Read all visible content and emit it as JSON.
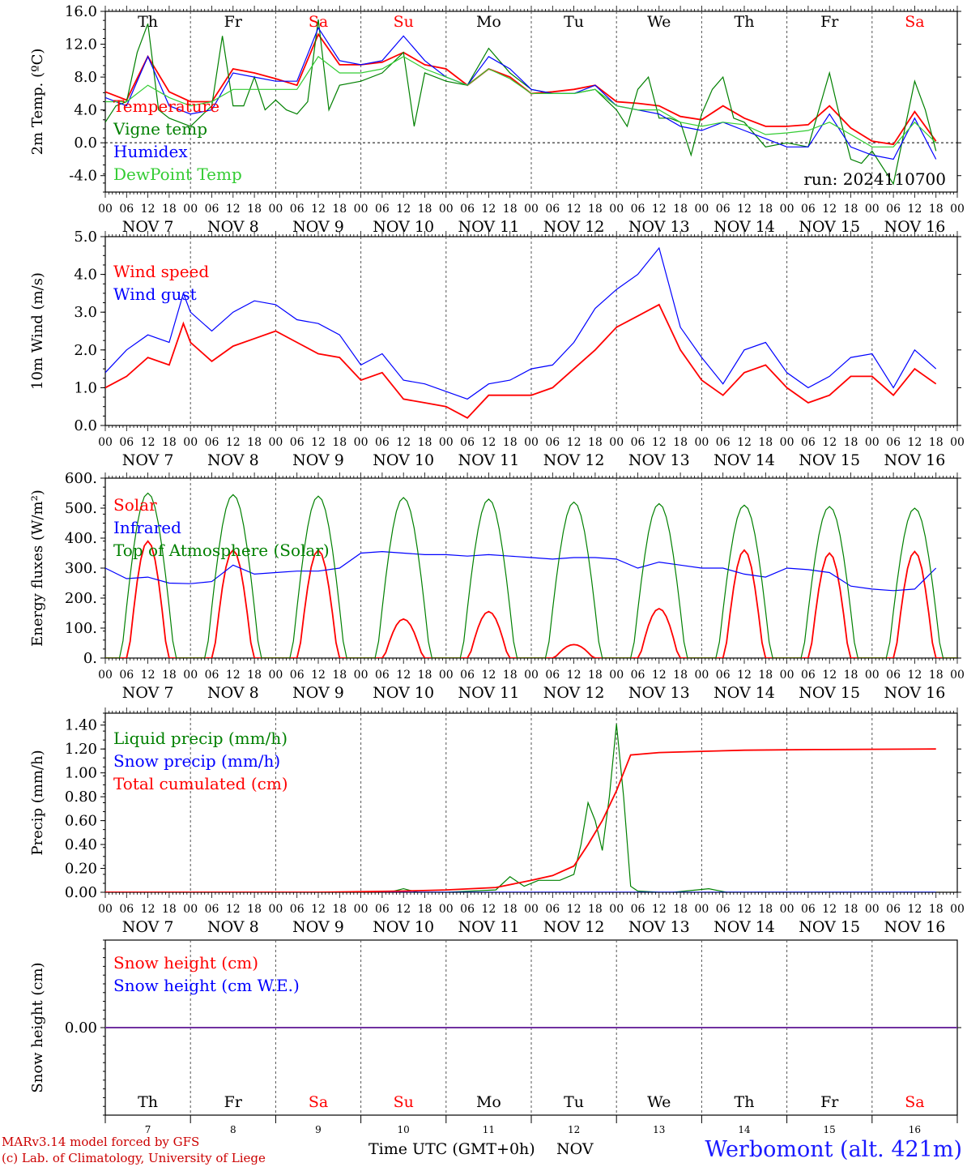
{
  "colors": {
    "red": "#ff0000",
    "green": "#008000",
    "blue": "#0000ff",
    "lightgreen": "#33cc33",
    "purple": "#7030a0",
    "sat": "#ff0000",
    "weekday": "#000000"
  },
  "run_label": "run: 2024110700",
  "station_label": "Werbomont (alt. 421m)",
  "footer": {
    "credit_line1": "MARv3.14 model forced by GFS",
    "credit_line2": "(c) Lab. of Climatology, University of Liege",
    "axis_title": "Time UTC (GMT+0h)",
    "month": "NOV"
  },
  "hour_ticks": [
    "00",
    "06",
    "12",
    "18"
  ],
  "day_labels": [
    "NOV  7",
    "NOV  8",
    "NOV  9",
    "NOV 10",
    "NOV 11",
    "NOV 12",
    "NOV 13",
    "NOV 14",
    "NOV 15",
    "NOV 16"
  ],
  "weekdays": [
    "Th",
    "Fr",
    "Sa",
    "Su",
    "Mo",
    "Tu",
    "We",
    "Th",
    "Fr",
    "Sa"
  ],
  "day_numbers": [
    "7",
    "8",
    "9",
    "10",
    "11",
    "12",
    "13",
    "14",
    "15",
    "16"
  ],
  "chart_data": [
    {
      "type": "line",
      "ylabel": "2m Temp. (ºC)",
      "ylim": [
        -6,
        16
      ],
      "yticks": [
        "16.0",
        "12.0",
        "8.0",
        "4.0",
        "0.0",
        "-4.0"
      ],
      "x_unit": "hours since NOV 7 00 UTC",
      "series": [
        {
          "name": "Temperature",
          "color": "red",
          "x": [
            0,
            6,
            12,
            18,
            24,
            30,
            36,
            42,
            48,
            54,
            60,
            66,
            72,
            78,
            84,
            90,
            96,
            102,
            108,
            114,
            120,
            126,
            132,
            138,
            144,
            150,
            156,
            162,
            168,
            174,
            180,
            186,
            192,
            198,
            204,
            210,
            216,
            222,
            228,
            234
          ],
          "y": [
            6.2,
            5.2,
            10.5,
            6.2,
            5.0,
            5.0,
            9.0,
            8.5,
            7.8,
            7.0,
            13.2,
            9.5,
            9.5,
            9.8,
            11.0,
            9.5,
            9.0,
            7.0,
            9.0,
            8.0,
            6.0,
            6.2,
            6.5,
            7.0,
            5.0,
            4.8,
            4.5,
            3.2,
            2.8,
            4.5,
            3.0,
            2.0,
            2.0,
            2.2,
            4.5,
            1.8,
            0.2,
            -0.2,
            3.8,
            0.2
          ]
        },
        {
          "name": "Vigne temp",
          "color": "green",
          "x": [
            0,
            3,
            6,
            9,
            12,
            15,
            18,
            24,
            30,
            33,
            36,
            39,
            42,
            45,
            48,
            51,
            54,
            57,
            60,
            63,
            66,
            72,
            78,
            84,
            87,
            90,
            96,
            102,
            108,
            111,
            114,
            120,
            126,
            132,
            138,
            144,
            147,
            150,
            153,
            156,
            159,
            162,
            165,
            168,
            171,
            174,
            177,
            180,
            186,
            192,
            198,
            204,
            207,
            210,
            213,
            216,
            222,
            228,
            231,
            234
          ],
          "y": [
            2.5,
            4.5,
            5.0,
            11.0,
            14.5,
            4.0,
            3.0,
            2.0,
            4.5,
            13.0,
            4.5,
            4.5,
            8.0,
            4.0,
            5.2,
            4.0,
            3.5,
            5.0,
            15.0,
            4.0,
            7.0,
            7.5,
            8.5,
            11.0,
            2.0,
            8.5,
            7.5,
            7.0,
            11.5,
            10.0,
            8.5,
            6.5,
            6.0,
            6.0,
            6.5,
            4.0,
            2.0,
            6.5,
            8.0,
            3.0,
            3.0,
            2.5,
            -1.5,
            3.5,
            6.5,
            8.0,
            3.0,
            2.5,
            -0.5,
            0.0,
            -0.5,
            8.5,
            3.0,
            -2.0,
            -2.5,
            -1.0,
            -5.0,
            7.5,
            4.0,
            -1.0
          ]
        },
        {
          "name": "Humidex",
          "color": "blue",
          "x": [
            0,
            6,
            12,
            18,
            24,
            30,
            36,
            42,
            48,
            54,
            60,
            66,
            72,
            78,
            84,
            90,
            96,
            102,
            108,
            114,
            120,
            126,
            132,
            138,
            144,
            150,
            156,
            162,
            168,
            174,
            180,
            186,
            192,
            198,
            204,
            210,
            216,
            222,
            228,
            234
          ],
          "y": [
            5.5,
            4.5,
            10.5,
            4.5,
            3.5,
            4.0,
            8.5,
            8.0,
            7.5,
            7.5,
            14.0,
            10.0,
            9.5,
            10.0,
            13.0,
            10.0,
            8.0,
            7.0,
            10.5,
            9.0,
            6.5,
            6.0,
            6.0,
            7.0,
            4.5,
            4.0,
            3.5,
            2.0,
            1.5,
            2.5,
            1.5,
            0.5,
            -0.5,
            -0.5,
            3.5,
            -0.5,
            -1.5,
            -2.0,
            3.0,
            -2.0
          ]
        },
        {
          "name": "DewPoint Temp",
          "color": "lightgreen",
          "x": [
            0,
            6,
            12,
            18,
            24,
            30,
            36,
            42,
            48,
            54,
            60,
            66,
            72,
            78,
            84,
            90,
            96,
            102,
            108,
            114,
            120,
            126,
            132,
            138,
            144,
            150,
            156,
            162,
            168,
            174,
            180,
            186,
            192,
            198,
            204,
            210,
            216,
            222,
            228,
            234
          ],
          "y": [
            5.0,
            5.0,
            7.0,
            5.5,
            4.5,
            5.0,
            6.5,
            6.5,
            6.5,
            6.5,
            10.5,
            8.5,
            8.5,
            9.0,
            10.5,
            9.0,
            8.0,
            7.0,
            9.0,
            7.8,
            6.0,
            6.0,
            6.0,
            6.5,
            4.5,
            4.0,
            4.0,
            2.5,
            2.0,
            2.5,
            2.2,
            1.0,
            1.2,
            1.5,
            2.5,
            1.0,
            -0.5,
            -0.5,
            2.5,
            0.0
          ]
        }
      ]
    },
    {
      "type": "line",
      "ylabel": "10m Wind (m/s)",
      "ylim": [
        0,
        5
      ],
      "yticks": [
        "5.0",
        "4.0",
        "3.0",
        "2.0",
        "1.0",
        "0.0"
      ],
      "x_unit": "hours since NOV 7 00 UTC",
      "series": [
        {
          "name": "Wind speed",
          "color": "red",
          "x": [
            0,
            6,
            12,
            18,
            22,
            24,
            30,
            36,
            42,
            48,
            54,
            60,
            66,
            72,
            78,
            84,
            90,
            96,
            102,
            108,
            114,
            120,
            126,
            132,
            138,
            144,
            150,
            156,
            162,
            168,
            174,
            180,
            186,
            192,
            198,
            204,
            210,
            216,
            222,
            228,
            234
          ],
          "y": [
            1.0,
            1.3,
            1.8,
            1.6,
            2.7,
            2.2,
            1.7,
            2.1,
            2.3,
            2.5,
            2.2,
            1.9,
            1.8,
            1.2,
            1.4,
            0.7,
            0.6,
            0.5,
            0.2,
            0.8,
            0.8,
            0.8,
            1.0,
            1.5,
            2.0,
            2.6,
            2.9,
            3.2,
            2.0,
            1.2,
            0.8,
            1.4,
            1.6,
            1.0,
            0.6,
            0.8,
            1.3,
            1.3,
            0.8,
            1.5,
            1.1
          ]
        },
        {
          "name": "Wind gust",
          "color": "blue",
          "x": [
            0,
            6,
            12,
            18,
            22,
            24,
            30,
            36,
            42,
            48,
            54,
            60,
            66,
            72,
            78,
            84,
            90,
            96,
            102,
            108,
            114,
            120,
            126,
            132,
            138,
            144,
            150,
            156,
            162,
            168,
            174,
            180,
            186,
            192,
            198,
            204,
            210,
            216,
            222,
            228,
            234
          ],
          "y": [
            1.4,
            2.0,
            2.4,
            2.2,
            3.5,
            3.0,
            2.5,
            3.0,
            3.3,
            3.2,
            2.8,
            2.7,
            2.4,
            1.6,
            1.9,
            1.2,
            1.1,
            0.9,
            0.7,
            1.1,
            1.2,
            1.5,
            1.6,
            2.2,
            3.1,
            3.6,
            4.0,
            4.7,
            2.6,
            1.8,
            1.1,
            2.0,
            2.2,
            1.4,
            1.0,
            1.3,
            1.8,
            1.9,
            1.0,
            2.0,
            1.5
          ]
        }
      ]
    },
    {
      "type": "line",
      "ylabel": "Energy fluxes (W/m²)",
      "ylim": [
        0,
        600
      ],
      "yticks": [
        "600.",
        "500.",
        "400.",
        "300.",
        "200.",
        "100.",
        "0."
      ],
      "x_unit": "hours since NOV 7 00 UTC",
      "daily_peaks": {
        "Solar": [
          390,
          360,
          360,
          130,
          155,
          45,
          165,
          360,
          350,
          355
        ],
        "Top of Atmosphere (Solar)": [
          550,
          545,
          540,
          535,
          530,
          520,
          515,
          510,
          505,
          500
        ]
      },
      "series": [
        {
          "name": "Solar",
          "color": "red"
        },
        {
          "name": "Infrared",
          "color": "blue",
          "x": [
            0,
            6,
            12,
            18,
            24,
            30,
            36,
            42,
            48,
            54,
            60,
            66,
            72,
            78,
            84,
            90,
            96,
            102,
            108,
            114,
            120,
            126,
            132,
            138,
            144,
            150,
            156,
            162,
            168,
            174,
            180,
            186,
            192,
            198,
            204,
            210,
            216,
            222,
            228,
            234
          ],
          "y": [
            300,
            265,
            270,
            250,
            248,
            255,
            310,
            280,
            285,
            290,
            290,
            300,
            350,
            355,
            350,
            345,
            345,
            340,
            345,
            340,
            335,
            330,
            335,
            335,
            330,
            300,
            320,
            310,
            300,
            300,
            280,
            270,
            300,
            295,
            285,
            240,
            230,
            225,
            230,
            300
          ]
        },
        {
          "name": "Top of Atmosphere (Solar)",
          "color": "green"
        }
      ]
    },
    {
      "type": "line",
      "ylabel": "Precip (mm/h)",
      "ylim": [
        0,
        1.5
      ],
      "yticks": [
        "1.40",
        "1.20",
        "1.00",
        "0.80",
        "0.60",
        "0.40",
        "0.20",
        "0.00"
      ],
      "x_unit": "hours since NOV 7 00 UTC",
      "series": [
        {
          "name": "Liquid precip (mm/h)",
          "color": "green",
          "x": [
            0,
            60,
            80,
            84,
            88,
            96,
            110,
            114,
            118,
            122,
            128,
            132,
            134,
            136,
            138,
            140,
            142,
            144,
            146,
            148,
            150,
            156,
            160,
            170,
            175,
            180,
            200,
            220,
            234
          ],
          "y": [
            0,
            0,
            0.0,
            0.03,
            0.0,
            0.0,
            0.02,
            0.13,
            0.05,
            0.1,
            0.1,
            0.15,
            0.4,
            0.75,
            0.6,
            0.35,
            0.8,
            1.41,
            0.8,
            0.05,
            0.01,
            0.0,
            0.0,
            0.03,
            0.0,
            0.0,
            0.0,
            0.0,
            0.0
          ]
        },
        {
          "name": "Snow precip (mm/h)",
          "color": "blue",
          "x": [
            0,
            234
          ],
          "y": [
            0,
            0
          ]
        },
        {
          "name": "Total cumulated (cm)",
          "color": "red",
          "x": [
            0,
            60,
            84,
            96,
            110,
            120,
            126,
            132,
            136,
            140,
            144,
            148,
            156,
            168,
            180,
            200,
            234
          ],
          "y": [
            0,
            0.0,
            0.01,
            0.02,
            0.04,
            0.1,
            0.14,
            0.22,
            0.4,
            0.6,
            0.85,
            1.15,
            1.17,
            1.18,
            1.19,
            1.195,
            1.2
          ]
        }
      ]
    },
    {
      "type": "line",
      "ylabel": "Snow height (cm)",
      "ylim": [
        -1,
        1
      ],
      "yticks": [
        "0.00"
      ],
      "x_unit": "hours since NOV 7 00 UTC",
      "series": [
        {
          "name": "Snow height (cm)",
          "color": "red",
          "x": [
            0,
            234
          ],
          "y": [
            0,
            0
          ]
        },
        {
          "name": "Snow height (cm W.E.)",
          "color": "blue",
          "x": [
            0,
            234
          ],
          "y": [
            0,
            0
          ]
        }
      ]
    }
  ]
}
